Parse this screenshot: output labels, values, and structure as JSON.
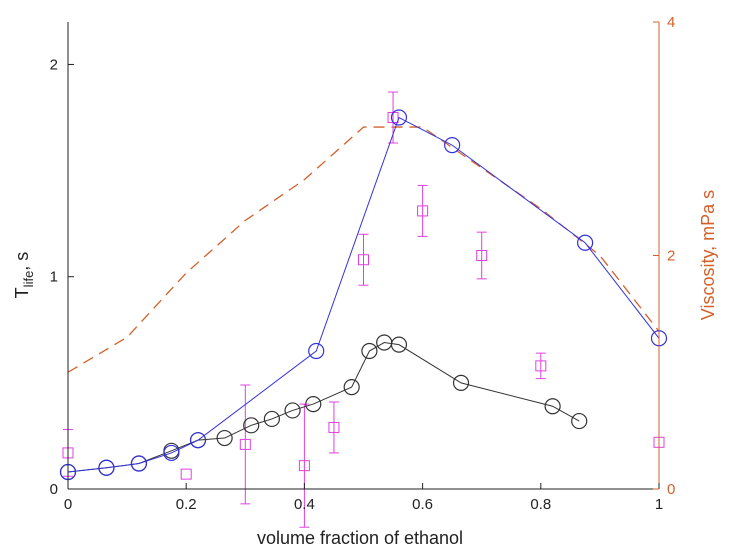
{
  "chart_data": {
    "type": "line",
    "title": "",
    "xlabel": "volume fraction of ethanol",
    "ylabel_main": "T",
    "ylabel_sub": "life",
    "ylabel_suffix": ", s",
    "y2label": "Viscosity, mPa s",
    "xlim": [
      0,
      1
    ],
    "ylim": [
      0,
      2.2
    ],
    "y2lim": [
      0,
      4
    ],
    "x_ticks": [
      "0",
      "0.2",
      "0.4",
      "0.6",
      "0.8",
      "1"
    ],
    "y_ticks": [
      "0",
      "1",
      "2"
    ],
    "y2_ticks": [
      "0",
      "2",
      "4"
    ],
    "grid": false,
    "colors": {
      "blue": "#3333dd",
      "black": "#333333",
      "orange": "#d4602a",
      "magenta": "#e040e0",
      "axis": "#222222"
    },
    "series": [
      {
        "style": "blue line with circles",
        "axis": "left",
        "x": [
          0.0,
          0.065,
          0.12,
          0.175,
          0.22,
          0.42,
          0.56,
          0.65,
          0.875,
          1.0
        ],
        "y": [
          0.08,
          0.1,
          0.12,
          0.17,
          0.23,
          0.65,
          1.75,
          1.62,
          1.16,
          0.71
        ]
      },
      {
        "style": "black line with circles",
        "axis": "left",
        "x": [
          0.0,
          0.065,
          0.12,
          0.175,
          0.22,
          0.265,
          0.31,
          0.345,
          0.38,
          0.415,
          0.48,
          0.51,
          0.535,
          0.56,
          0.665,
          0.82,
          0.865
        ],
        "y": [
          0.08,
          0.1,
          0.12,
          0.18,
          0.23,
          0.24,
          0.3,
          0.33,
          0.37,
          0.4,
          0.48,
          0.65,
          0.69,
          0.68,
          0.5,
          0.39,
          0.32
        ]
      },
      {
        "style": "orange dashed line",
        "axis": "right",
        "x": [
          0.0,
          0.1,
          0.2,
          0.3,
          0.4,
          0.5,
          0.6,
          0.7,
          0.8,
          0.9,
          1.0
        ],
        "y": [
          1.0,
          1.3,
          1.85,
          2.3,
          2.65,
          3.1,
          3.1,
          2.75,
          2.4,
          2.0,
          1.35
        ]
      },
      {
        "style": "magenta squares with error bars",
        "axis": "left",
        "x": [
          0.0,
          0.2,
          0.3,
          0.4,
          0.45,
          0.5,
          0.55,
          0.6,
          0.7,
          0.8,
          1.0
        ],
        "y": [
          0.17,
          0.07,
          0.21,
          0.11,
          0.29,
          1.08,
          1.75,
          1.31,
          1.1,
          0.58,
          0.22
        ],
        "err": [
          0.11,
          0.0,
          0.28,
          0.29,
          0.12,
          0.12,
          0.12,
          0.12,
          0.11,
          0.06,
          0.0
        ]
      }
    ]
  }
}
